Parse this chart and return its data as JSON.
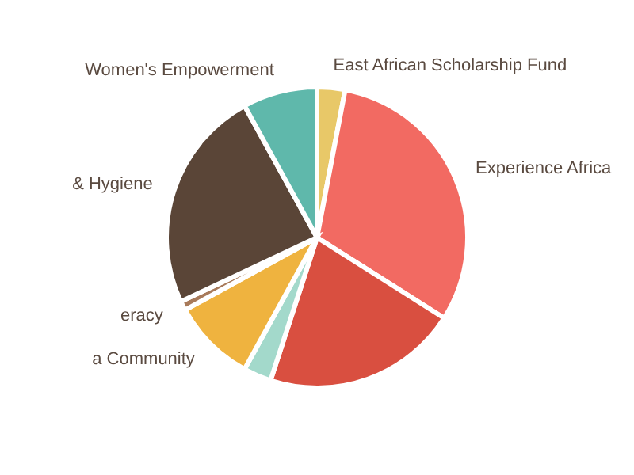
{
  "chart_data": {
    "type": "pie",
    "categories": [
      "East African Scholarship Fund",
      "Experience Africa",
      null,
      null,
      "a Community",
      "eracy",
      "& Hygiene",
      "Women's Empowerment"
    ],
    "values": [
      3,
      31,
      21,
      3,
      9,
      1,
      24,
      8
    ],
    "colors": [
      "#e8c868",
      "#f26a62",
      "#d94f40",
      "#a3d9cb",
      "#efb33f",
      "#a87a5a",
      "#5a4537",
      "#5fb8ab"
    ],
    "legend": false
  }
}
